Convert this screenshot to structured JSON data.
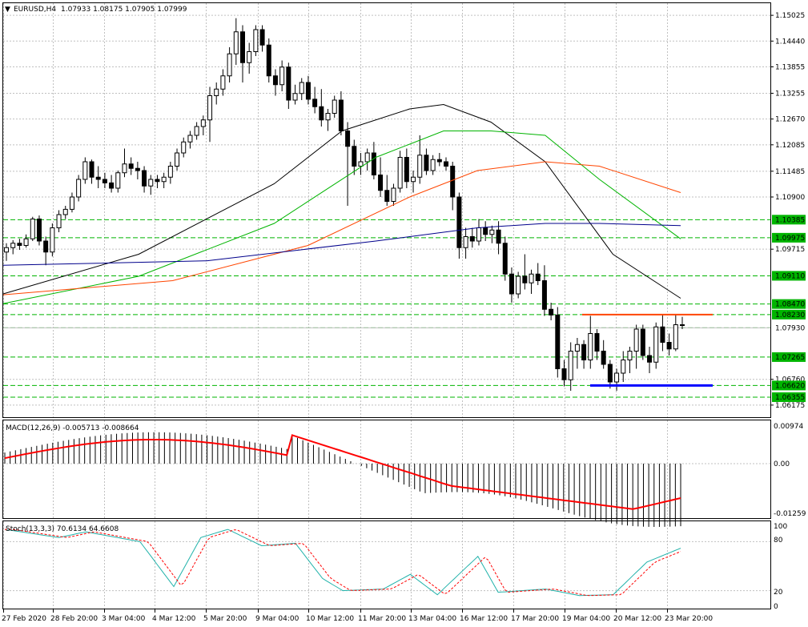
{
  "header": {
    "menu_glyph": "▼",
    "symbol": "EURUSD,H4",
    "ohlc": "1.07933 1.08175 1.07905 1.07999"
  },
  "macd": {
    "label": "MACD(12,26,9) -0.005713 -0.008664",
    "ticks": [
      "0.00974",
      "0.00",
      "-0.01259"
    ],
    "signal_color": "#ff0000",
    "hist_color": "#000000"
  },
  "stoch": {
    "label": "Stoch(13,3,3) 70.6134 64.6608",
    "ticks": [
      "100",
      "80",
      "20",
      "0"
    ],
    "main_color": "#20b2aa",
    "signal_color": "#ff0000"
  },
  "colors": {
    "ma_black": "#000000",
    "ma_green": "#00b400",
    "ma_orange": "#ff4500",
    "ma_blue": "#00008b",
    "level_green": "#00b400",
    "resistance": "#ff4500",
    "support": "#0000ff",
    "bull_candle": "#ffffff",
    "bear_candle": "#000000",
    "grid": "#c0c0c0"
  },
  "chart_data": {
    "type": "candlestick",
    "symbol": "EURUSD",
    "timeframe": "H4",
    "ylim": [
      1.059,
      1.153
    ],
    "y_ticks": [
      "1.15025",
      "1.14440",
      "1.13855",
      "1.13255",
      "1.12670",
      "1.12085",
      "1.11485",
      "1.10900",
      "1.10385",
      "1.09975",
      "1.09715",
      "1.09110",
      "1.08470",
      "1.08230",
      "1.07930",
      "1.07265",
      "1.06760",
      "1.06620",
      "1.06355",
      "1.06175"
    ],
    "x_ticks": [
      "27 Feb 2020",
      "28 Feb 20:00",
      "3 Mar 04:00",
      "4 Mar 12:00",
      "5 Mar 20:00",
      "9 Mar 04:00",
      "10 Mar 12:00",
      "11 Mar 20:00",
      "13 Mar 04:00",
      "16 Mar 12:00",
      "17 Mar 20:00",
      "19 Mar 04:00",
      "20 Mar 12:00",
      "23 Mar 20:00"
    ],
    "highlighted_levels": [
      "1.10385",
      "1.09975",
      "1.09110",
      "1.08470",
      "1.08230",
      "1.07930",
      "1.07265",
      "1.06620",
      "1.06355"
    ],
    "current_price": "1.07930",
    "resistance_level": 1.0823,
    "support_level": 1.0662,
    "candles": [
      [
        1.0965,
        1.0985,
        1.0945,
        1.0975
      ],
      [
        1.0975,
        1.0992,
        1.096,
        1.0985
      ],
      [
        1.0985,
        1.0995,
        1.097,
        1.098
      ],
      [
        1.098,
        1.1005,
        1.0975,
        1.0995
      ],
      [
        1.0995,
        1.1045,
        1.099,
        1.104
      ],
      [
        1.104,
        1.1048,
        1.098,
        1.099
      ],
      [
        1.099,
        1.1,
        1.0935,
        1.0965
      ],
      [
        1.0965,
        1.103,
        1.0955,
        1.102
      ],
      [
        1.102,
        1.106,
        1.101,
        1.105
      ],
      [
        1.105,
        1.107,
        1.104,
        1.1062
      ],
      [
        1.1062,
        1.11,
        1.1055,
        1.109
      ],
      [
        1.109,
        1.114,
        1.108,
        1.113
      ],
      [
        1.113,
        1.118,
        1.112,
        1.117
      ],
      [
        1.117,
        1.1175,
        1.112,
        1.1135
      ],
      [
        1.1135,
        1.116,
        1.111,
        1.113
      ],
      [
        1.113,
        1.1145,
        1.111,
        1.1122
      ],
      [
        1.1122,
        1.114,
        1.11,
        1.111
      ],
      [
        1.111,
        1.115,
        1.11,
        1.1145
      ],
      [
        1.1145,
        1.12,
        1.1135,
        1.1165
      ],
      [
        1.1165,
        1.118,
        1.114,
        1.1155
      ],
      [
        1.1155,
        1.117,
        1.113,
        1.115
      ],
      [
        1.115,
        1.116,
        1.11,
        1.1115
      ],
      [
        1.1115,
        1.114,
        1.1095,
        1.113
      ],
      [
        1.113,
        1.114,
        1.111,
        1.1125
      ],
      [
        1.1125,
        1.1145,
        1.111,
        1.1135
      ],
      [
        1.1135,
        1.117,
        1.112,
        1.116
      ],
      [
        1.116,
        1.12,
        1.115,
        1.119
      ],
      [
        1.119,
        1.1225,
        1.118,
        1.1215
      ],
      [
        1.1215,
        1.124,
        1.12,
        1.123
      ],
      [
        1.123,
        1.126,
        1.122,
        1.125
      ],
      [
        1.125,
        1.1275,
        1.123,
        1.1265
      ],
      [
        1.1265,
        1.134,
        1.1215,
        1.132
      ],
      [
        1.132,
        1.135,
        1.13,
        1.1335
      ],
      [
        1.1335,
        1.138,
        1.132,
        1.1365
      ],
      [
        1.1365,
        1.143,
        1.135,
        1.1415
      ],
      [
        1.1415,
        1.1496,
        1.139,
        1.1465
      ],
      [
        1.1465,
        1.148,
        1.135,
        1.1395
      ],
      [
        1.1395,
        1.144,
        1.137,
        1.142
      ],
      [
        1.142,
        1.148,
        1.141,
        1.147
      ],
      [
        1.147,
        1.148,
        1.142,
        1.1435
      ],
      [
        1.1435,
        1.145,
        1.135,
        1.1365
      ],
      [
        1.1365,
        1.138,
        1.132,
        1.1345
      ],
      [
        1.1345,
        1.14,
        1.133,
        1.1385
      ],
      [
        1.1385,
        1.1395,
        1.129,
        1.131
      ],
      [
        1.131,
        1.1345,
        1.13,
        1.1325
      ],
      [
        1.1325,
        1.136,
        1.131,
        1.135
      ],
      [
        1.135,
        1.1365,
        1.13,
        1.1312
      ],
      [
        1.1312,
        1.134,
        1.128,
        1.1295
      ],
      [
        1.1295,
        1.1335,
        1.125,
        1.1265
      ],
      [
        1.1265,
        1.129,
        1.124,
        1.128
      ],
      [
        1.128,
        1.132,
        1.127,
        1.131
      ],
      [
        1.131,
        1.133,
        1.123,
        1.124
      ],
      [
        1.124,
        1.126,
        1.107,
        1.1205
      ],
      [
        1.1205,
        1.122,
        1.114,
        1.116
      ],
      [
        1.116,
        1.119,
        1.114,
        1.117
      ],
      [
        1.117,
        1.12,
        1.115,
        1.119
      ],
      [
        1.119,
        1.1215,
        1.113,
        1.114
      ],
      [
        1.114,
        1.118,
        1.109,
        1.1105
      ],
      [
        1.1105,
        1.114,
        1.107,
        1.108
      ],
      [
        1.108,
        1.112,
        1.107,
        1.111
      ],
      [
        1.111,
        1.1195,
        1.11,
        1.118
      ],
      [
        1.118,
        1.12,
        1.111,
        1.1125
      ],
      [
        1.1125,
        1.115,
        1.11,
        1.1135
      ],
      [
        1.1135,
        1.123,
        1.112,
        1.1185
      ],
      [
        1.1185,
        1.12,
        1.114,
        1.115
      ],
      [
        1.115,
        1.1185,
        1.114,
        1.1175
      ],
      [
        1.1175,
        1.119,
        1.116,
        1.117
      ],
      [
        1.117,
        1.118,
        1.115,
        1.116
      ],
      [
        1.116,
        1.117,
        1.106,
        1.109
      ],
      [
        1.109,
        1.11,
        1.095,
        1.0975
      ],
      [
        1.0975,
        1.102,
        1.095,
        1.1
      ],
      [
        1.1,
        1.102,
        1.0975,
        1.099
      ],
      [
        1.099,
        1.104,
        1.098,
        1.102
      ],
      [
        1.102,
        1.1035,
        1.099,
        1.1005
      ],
      [
        1.1005,
        1.1025,
        1.0985,
        1.1015
      ],
      [
        1.1015,
        1.1035,
        1.096,
        1.0985
      ],
      [
        1.0985,
        1.1,
        1.09,
        1.0915
      ],
      [
        1.0915,
        1.093,
        1.085,
        1.087
      ],
      [
        1.087,
        1.092,
        1.086,
        1.091
      ],
      [
        1.091,
        1.096,
        1.088,
        1.0895
      ],
      [
        1.0895,
        1.0925,
        1.087,
        1.0915
      ],
      [
        1.0915,
        1.094,
        1.089,
        1.09
      ],
      [
        1.09,
        1.0935,
        1.082,
        1.0835
      ],
      [
        1.0835,
        1.085,
        1.081,
        1.0822
      ],
      [
        1.0822,
        1.084,
        1.068,
        1.07
      ],
      [
        1.07,
        1.072,
        1.066,
        1.0675
      ],
      [
        1.0675,
        1.076,
        1.065,
        1.074
      ],
      [
        1.074,
        1.077,
        1.07,
        1.0755
      ],
      [
        1.0755,
        1.0765,
        1.07,
        1.072
      ],
      [
        1.072,
        1.082,
        1.07,
        1.078
      ],
      [
        1.078,
        1.079,
        1.072,
        1.074
      ],
      [
        1.074,
        1.0765,
        1.07,
        1.071
      ],
      [
        1.071,
        1.072,
        1.0655,
        1.067
      ],
      [
        1.067,
        1.07,
        1.065,
        1.069
      ],
      [
        1.069,
        1.074,
        1.067,
        1.072
      ],
      [
        1.072,
        1.075,
        1.069,
        1.074
      ],
      [
        1.074,
        1.08,
        1.07,
        1.079
      ],
      [
        1.079,
        1.08,
        1.072,
        1.073
      ],
      [
        1.073,
        1.075,
        1.069,
        1.0715
      ],
      [
        1.0715,
        1.0805,
        1.07,
        1.0795
      ],
      [
        1.0795,
        1.0823,
        1.074,
        1.076
      ],
      [
        1.076,
        1.078,
        1.073,
        1.0745
      ],
      [
        1.0745,
        1.0823,
        1.074,
        1.08
      ],
      [
        1.08,
        1.0818,
        1.079,
        1.08
      ]
    ],
    "series": [
      {
        "color": "black",
        "x_frac": [
          0,
          0.2,
          0.4,
          0.5,
          0.6,
          0.65,
          0.72,
          0.8,
          0.9,
          1.0
        ],
        "values": [
          1.087,
          1.096,
          1.112,
          1.124,
          1.129,
          1.13,
          1.126,
          1.117,
          1.096,
          1.086
        ]
      },
      {
        "color": "green",
        "x_frac": [
          0,
          0.2,
          0.4,
          0.55,
          0.65,
          0.72,
          0.8,
          0.88,
          1.0
        ],
        "values": [
          1.0848,
          1.091,
          1.103,
          1.118,
          1.124,
          1.124,
          1.123,
          1.113,
          1.0995
        ]
      },
      {
        "color": "orange",
        "x_frac": [
          0,
          0.25,
          0.45,
          0.6,
          0.7,
          0.8,
          0.88,
          1.0
        ],
        "values": [
          1.0868,
          1.09,
          1.098,
          1.109,
          1.115,
          1.117,
          1.116,
          1.11
        ]
      },
      {
        "color": "blue",
        "x_frac": [
          0,
          0.3,
          0.55,
          0.7,
          0.8,
          0.88,
          1.0
        ],
        "values": [
          1.0935,
          1.0945,
          1.099,
          1.102,
          1.103,
          1.103,
          1.1025
        ]
      }
    ]
  }
}
